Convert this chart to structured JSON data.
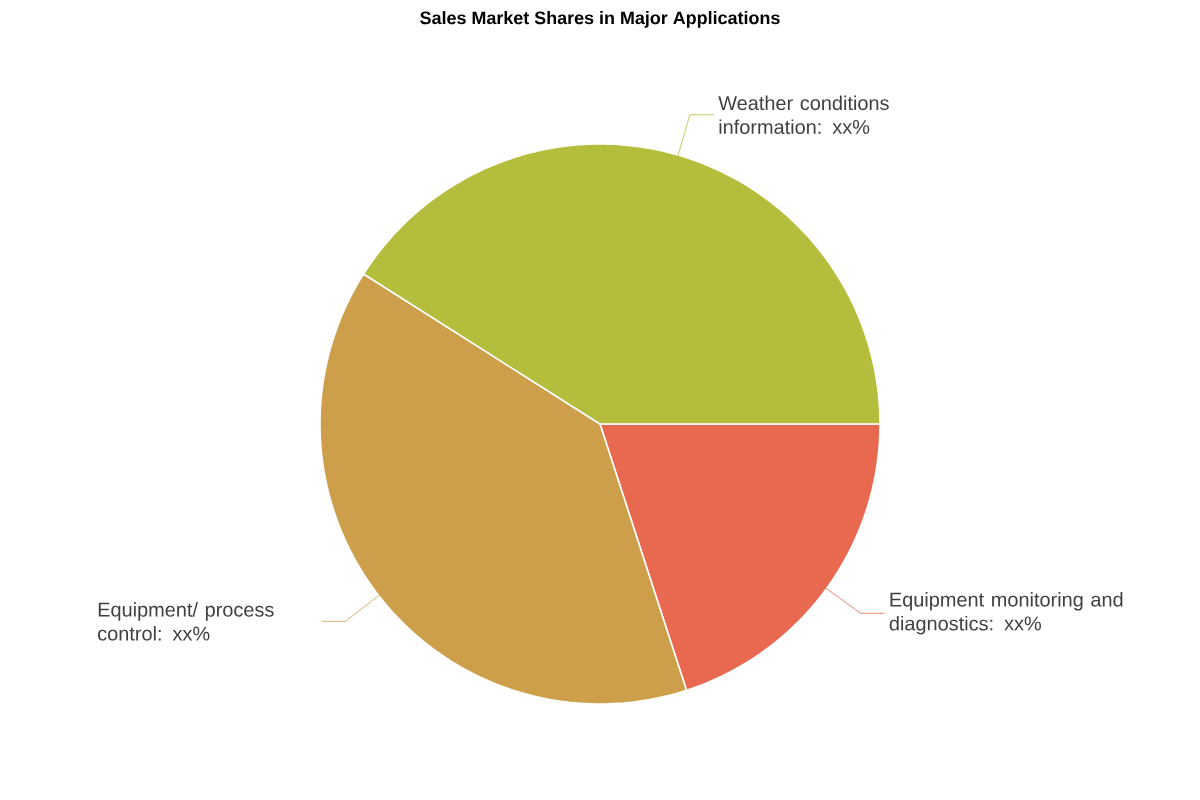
{
  "chart_data": {
    "type": "pie",
    "title": "Sales Market Shares in Major Applications",
    "categories": [
      "Equipment monitoring and diagnostics: xx%",
      "Equipment/ process control: xx%",
      "Weather conditions information: xx%"
    ],
    "values": [
      20,
      39,
      41
    ],
    "colors": [
      "#e8694f",
      "#cd9f4a",
      "#b5be3c"
    ]
  }
}
